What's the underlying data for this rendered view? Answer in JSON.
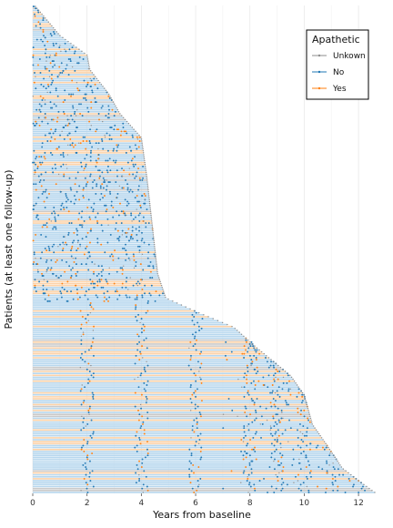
{
  "chart_data": {
    "type": "swimmer",
    "title": "",
    "xlabel": "Years from baseline",
    "ylabel": "Patients (at least one follow-up)",
    "xlim": [
      0,
      12.6
    ],
    "xticks": [
      0,
      2,
      4,
      6,
      8,
      10,
      12
    ],
    "grid": true,
    "legend": {
      "title": "Apathetic",
      "placement": "top-right",
      "entries": [
        {
          "label": "Unkown",
          "color": "#8c8c8c"
        },
        {
          "label": "No",
          "color": "#1f77b4"
        },
        {
          "label": "Yes",
          "color": "#ff7f0e"
        }
      ]
    },
    "n_patients": 250,
    "followup_profile": {
      "note_rank_fraction": [
        0,
        0.06,
        0.1,
        0.13,
        0.18,
        0.22,
        0.27,
        0.35,
        0.45,
        0.55,
        0.6,
        0.63,
        0.66,
        0.7,
        0.76,
        0.8,
        0.86,
        0.9,
        0.95,
        0.98,
        1.0
      ],
      "years": [
        0.1,
        1.0,
        2.0,
        2.1,
        2.8,
        3.2,
        4.0,
        4.2,
        4.4,
        4.6,
        4.9,
        6.1,
        7.4,
        8.2,
        9.5,
        10.0,
        10.3,
        10.8,
        11.4,
        12.1,
        12.6
      ]
    },
    "visit_years_later_cohort": [
      0,
      2,
      4,
      6,
      8,
      9,
      10,
      11,
      12
    ],
    "bar_colors": {
      "Unkown": "#c9c9c9",
      "No": "#b7d7ee",
      "Yes": "#fcd2a8"
    },
    "status_fraction": {
      "No": 0.72,
      "Yes": 0.2,
      "Unkown": 0.08
    }
  }
}
